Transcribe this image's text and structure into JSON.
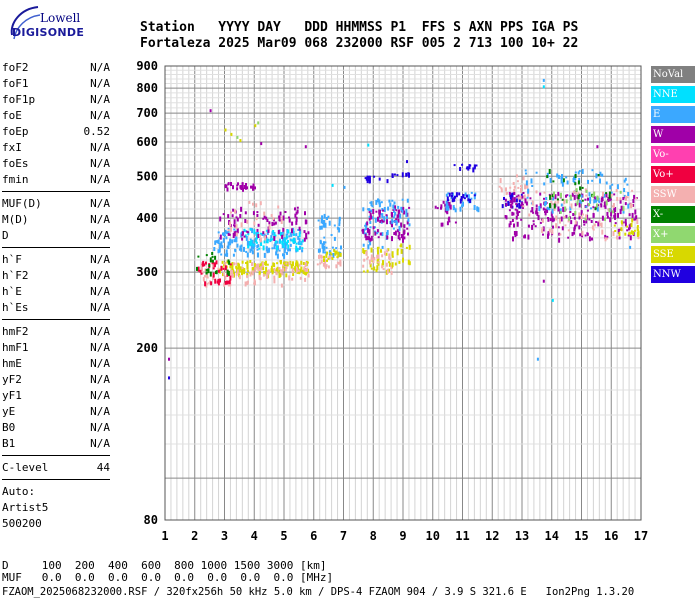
{
  "logo": {
    "line1": "Lowell",
    "line2": "DIGISONDE"
  },
  "header": {
    "labels": "Station   YYYY DAY   DDD HHMMSS P1  FFS S AXN PPS IGA PS",
    "values": "Fortaleza 2025 Mar09 068 232000 RSF 005 2 713 100 10+ 22"
  },
  "params": {
    "group1": [
      {
        "name": "foF2",
        "value": "N/A"
      },
      {
        "name": "foF1",
        "value": "N/A"
      },
      {
        "name": "foF1p",
        "value": "N/A"
      },
      {
        "name": "foE",
        "value": "N/A"
      },
      {
        "name": "foEp",
        "value": "0.52"
      },
      {
        "name": "fxI",
        "value": "N/A"
      },
      {
        "name": "foEs",
        "value": "N/A"
      },
      {
        "name": "fmin",
        "value": "N/A"
      }
    ],
    "group2": [
      {
        "name": "MUF(D)",
        "value": "N/A"
      },
      {
        "name": "M(D)",
        "value": "N/A"
      },
      {
        "name": "D",
        "value": "N/A"
      }
    ],
    "group3": [
      {
        "name": "h`F",
        "value": "N/A"
      },
      {
        "name": "h`F2",
        "value": "N/A"
      },
      {
        "name": "h`E",
        "value": "N/A"
      },
      {
        "name": "h`Es",
        "value": "N/A"
      }
    ],
    "group4": [
      {
        "name": "hmF2",
        "value": "N/A"
      },
      {
        "name": "hmF1",
        "value": "N/A"
      },
      {
        "name": "hmE",
        "value": "N/A"
      },
      {
        "name": "yF2",
        "value": "N/A"
      },
      {
        "name": "yF1",
        "value": "N/A"
      },
      {
        "name": "yE",
        "value": "N/A"
      },
      {
        "name": "B0",
        "value": "N/A"
      },
      {
        "name": "B1",
        "value": "N/A"
      }
    ],
    "clevel": {
      "name": "C-level",
      "value": "44"
    },
    "auto": [
      "Auto:",
      "Artist5",
      "500200"
    ]
  },
  "legend": [
    {
      "label": "NoVal",
      "color": "#808080"
    },
    {
      "label": "NNE",
      "color": "#00e0ff"
    },
    {
      "label": "E",
      "color": "#3ba8ff"
    },
    {
      "label": "W",
      "color": "#a000a8"
    },
    {
      "label": "Vo-",
      "color": "#ff40b0"
    },
    {
      "label": "Vo+",
      "color": "#f00040"
    },
    {
      "label": "SSW",
      "color": "#f4b0b0"
    },
    {
      "label": "X-",
      "color": "#008000"
    },
    {
      "label": "X+",
      "color": "#90d870"
    },
    {
      "label": "SSE",
      "color": "#d8d800"
    },
    {
      "label": "NNW",
      "color": "#2000e0"
    }
  ],
  "footer": {
    "line1": "D     100  200  400  600  800 1000 1500 3000 [km]",
    "line2": "MUF   0.0  0.0  0.0  0.0  0.0  0.0  0.0  0.0 [MHz]",
    "line3": "FZAOM_2025068232000.RSF / 320fx256h 50 kHz 5.0 km / DPS-4 FZAOM 904 / 3.9 S 321.6 E   Ion2Png 1.3.20"
  },
  "chart_data": {
    "type": "scatter",
    "title": "",
    "xlabel": "",
    "ylabel": "",
    "xlim": [
      1,
      17
    ],
    "ylim": [
      80,
      900
    ],
    "y_scale": "log",
    "grid": true,
    "x_ticks": [
      1,
      2,
      3,
      4,
      5,
      6,
      7,
      8,
      9,
      10,
      11,
      12,
      13,
      14,
      15,
      16,
      17
    ],
    "y_ticks": [
      80,
      100,
      200,
      300,
      400,
      500,
      600,
      700,
      800,
      900
    ],
    "y_tick_labels": [
      "80",
      "",
      "200",
      "300",
      "400",
      "500",
      "600",
      "700",
      "800",
      "900"
    ],
    "clusters": [
      {
        "series": "E",
        "x": [
          2.6,
          5.6
        ],
        "y": [
          330,
          380
        ],
        "n": 160
      },
      {
        "series": "NNE",
        "x": [
          3.5,
          5.6
        ],
        "y": [
          340,
          380
        ],
        "n": 60
      },
      {
        "series": "SSE",
        "x": [
          2.8,
          5.8
        ],
        "y": [
          298,
          320
        ],
        "n": 140
      },
      {
        "series": "SSW",
        "x": [
          2.2,
          5.8
        ],
        "y": [
          282,
          318
        ],
        "n": 90
      },
      {
        "series": "Vo+",
        "x": [
          2.0,
          3.2
        ],
        "y": [
          285,
          320
        ],
        "n": 35
      },
      {
        "series": "X-",
        "x": [
          2.0,
          3.2
        ],
        "y": [
          300,
          335
        ],
        "n": 20
      },
      {
        "series": "W",
        "x": [
          2.8,
          5.8
        ],
        "y": [
          360,
          425
        ],
        "n": 80
      },
      {
        "series": "W",
        "x": [
          3.0,
          4.0
        ],
        "y": [
          470,
          485
        ],
        "n": 25
      },
      {
        "series": "SSW",
        "x": [
          3.0,
          5.0
        ],
        "y": [
          360,
          440
        ],
        "n": 25
      },
      {
        "series": "E",
        "x": [
          6.1,
          6.9
        ],
        "y": [
          330,
          410
        ],
        "n": 45
      },
      {
        "series": "SSW",
        "x": [
          6.1,
          6.9
        ],
        "y": [
          310,
          330
        ],
        "n": 25
      },
      {
        "series": "SSE",
        "x": [
          6.1,
          6.9
        ],
        "y": [
          318,
          340
        ],
        "n": 15
      },
      {
        "series": "E",
        "x": [
          7.6,
          8.6
        ],
        "y": [
          340,
          445
        ],
        "n": 50
      },
      {
        "series": "W",
        "x": [
          7.6,
          8.6
        ],
        "y": [
          360,
          420
        ],
        "n": 40
      },
      {
        "series": "SSE",
        "x": [
          7.6,
          8.6
        ],
        "y": [
          300,
          345
        ],
        "n": 30
      },
      {
        "series": "SSW",
        "x": [
          7.6,
          8.6
        ],
        "y": [
          300,
          340
        ],
        "n": 25
      },
      {
        "series": "NNW",
        "x": [
          7.7,
          8.5
        ],
        "y": [
          492,
          502
        ],
        "n": 12
      },
      {
        "series": "W",
        "x": [
          8.6,
          9.2
        ],
        "y": [
          360,
          430
        ],
        "n": 35
      },
      {
        "series": "E",
        "x": [
          8.6,
          9.2
        ],
        "y": [
          380,
          450
        ],
        "n": 25
      },
      {
        "series": "SSE",
        "x": [
          8.6,
          9.2
        ],
        "y": [
          310,
          350
        ],
        "n": 15
      },
      {
        "series": "NNW",
        "x": [
          8.6,
          9.2
        ],
        "y": [
          505,
          512
        ],
        "n": 8
      },
      {
        "series": "W",
        "x": [
          10.0,
          10.8
        ],
        "y": [
          390,
          440
        ],
        "n": 20
      },
      {
        "series": "E",
        "x": [
          10.4,
          11.6
        ],
        "y": [
          420,
          460
        ],
        "n": 30
      },
      {
        "series": "NNW",
        "x": [
          10.4,
          11.5
        ],
        "y": [
          440,
          460
        ],
        "n": 20
      },
      {
        "series": "NNW",
        "x": [
          10.5,
          11.5
        ],
        "y": [
          522,
          535
        ],
        "n": 12
      },
      {
        "series": "SSW",
        "x": [
          12.2,
          13.2
        ],
        "y": [
          450,
          500
        ],
        "n": 25
      },
      {
        "series": "NNW",
        "x": [
          12.3,
          13.0
        ],
        "y": [
          425,
          465
        ],
        "n": 20
      },
      {
        "series": "W",
        "x": [
          12.4,
          16.9
        ],
        "y": [
          360,
          460
        ],
        "n": 220
      },
      {
        "series": "E",
        "x": [
          13.0,
          16.8
        ],
        "y": [
          420,
          520
        ],
        "n": 80
      },
      {
        "series": "SSW",
        "x": [
          13.0,
          16.9
        ],
        "y": [
          360,
          470
        ],
        "n": 70
      },
      {
        "series": "X-",
        "x": [
          13.8,
          16.0
        ],
        "y": [
          420,
          520
        ],
        "n": 25
      },
      {
        "series": "SSE",
        "x": [
          16.0,
          16.9
        ],
        "y": [
          370,
          400
        ],
        "n": 20
      },
      {
        "series": "X+",
        "x": [
          14.0,
          16.5
        ],
        "y": [
          400,
          470
        ],
        "n": 25
      }
    ],
    "points": [
      {
        "x": 1.1,
        "y": 190,
        "series": "W"
      },
      {
        "x": 1.1,
        "y": 172,
        "series": "NNW"
      },
      {
        "x": 2.5,
        "y": 715,
        "series": "W"
      },
      {
        "x": 13.7,
        "y": 840,
        "series": "E"
      },
      {
        "x": 13.7,
        "y": 812,
        "series": "NNE"
      },
      {
        "x": 13.5,
        "y": 190,
        "series": "E"
      },
      {
        "x": 13.7,
        "y": 288,
        "series": "W"
      },
      {
        "x": 15.5,
        "y": 590,
        "series": "W"
      },
      {
        "x": 7.8,
        "y": 595,
        "series": "NNE"
      },
      {
        "x": 4.2,
        "y": 600,
        "series": "W"
      },
      {
        "x": 5.7,
        "y": 590,
        "series": "W"
      },
      {
        "x": 3.0,
        "y": 645,
        "series": "SSE"
      },
      {
        "x": 3.2,
        "y": 630,
        "series": "SSE"
      },
      {
        "x": 3.4,
        "y": 620,
        "series": "X+"
      },
      {
        "x": 3.5,
        "y": 610,
        "series": "SSE"
      },
      {
        "x": 4.0,
        "y": 660,
        "series": "SSE"
      },
      {
        "x": 4.1,
        "y": 670,
        "series": "X+"
      },
      {
        "x": 9.1,
        "y": 545,
        "series": "NNW"
      },
      {
        "x": 6.6,
        "y": 480,
        "series": "NNE"
      },
      {
        "x": 7.0,
        "y": 475,
        "series": "E"
      },
      {
        "x": 12.8,
        "y": 505,
        "series": "SSW"
      },
      {
        "x": 16.6,
        "y": 345,
        "series": "E"
      },
      {
        "x": 14.0,
        "y": 260,
        "series": "NNE"
      }
    ]
  }
}
